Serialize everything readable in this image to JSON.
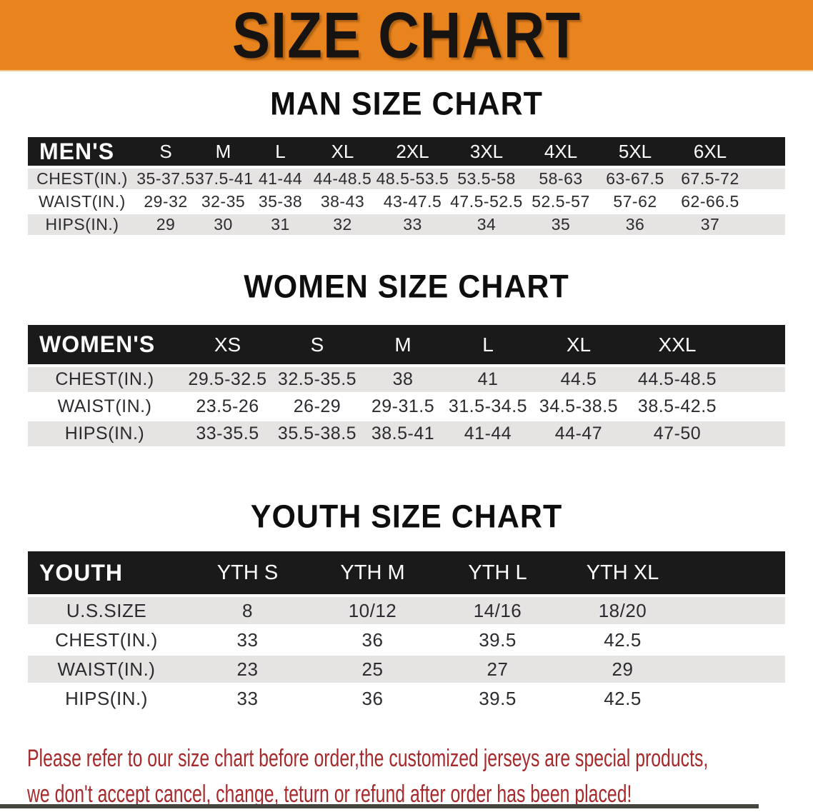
{
  "banner": {
    "title": "SIZE CHART"
  },
  "sections": [
    {
      "id": "men",
      "title": "MAN SIZE CHART",
      "table": {
        "header_label": "MEN'S",
        "columns": [
          "S",
          "M",
          "L",
          "XL",
          "2XL",
          "3XL",
          "4XL",
          "5XL",
          "6XL"
        ],
        "rows": [
          {
            "label": "CHEST(IN.)",
            "values": [
              "35-37.5",
              "37.5-41",
              "41-44",
              "44-48.5",
              "48.5-53.5",
              "53.5-58",
              "58-63",
              "63-67.5",
              "67.5-72"
            ]
          },
          {
            "label": "WAIST(IN.)",
            "values": [
              "29-32",
              "32-35",
              "35-38",
              "38-43",
              "43-47.5",
              "47.5-52.5",
              "52.5-57",
              "57-62",
              "62-66.5"
            ]
          },
          {
            "label": "HIPS(IN.)",
            "values": [
              "29",
              "30",
              "31",
              "32",
              "33",
              "34",
              "35",
              "36",
              "37"
            ]
          }
        ]
      }
    },
    {
      "id": "women",
      "title": "WOMEN SIZE CHART",
      "table": {
        "header_label": "WOMEN'S",
        "columns": [
          "XS",
          "S",
          "M",
          "L",
          "XL",
          "XXL"
        ],
        "rows": [
          {
            "label": "CHEST(IN.)",
            "values": [
              "29.5-32.5",
              "32.5-35.5",
              "38",
              "41",
              "44.5",
              "44.5-48.5"
            ]
          },
          {
            "label": "WAIST(IN.)",
            "values": [
              "23.5-26",
              "26-29",
              "29-31.5",
              "31.5-34.5",
              "34.5-38.5",
              "38.5-42.5"
            ]
          },
          {
            "label": "HIPS(IN.)",
            "values": [
              "33-35.5",
              "35.5-38.5",
              "38.5-41",
              "41-44",
              "44-47",
              "47-50"
            ]
          }
        ]
      }
    },
    {
      "id": "youth",
      "title": "YOUTH SIZE CHART",
      "table": {
        "header_label": "YOUTH",
        "columns": [
          "YTH S",
          "YTH M",
          "YTH L",
          "YTH XL"
        ],
        "rows": [
          {
            "label": "U.S.SIZE",
            "values": [
              "8",
              "10/12",
              "14/16",
              "18/20"
            ]
          },
          {
            "label": "CHEST(IN.)",
            "values": [
              "33",
              "36",
              "39.5",
              "42.5"
            ]
          },
          {
            "label": "WAIST(IN.)",
            "values": [
              "23",
              "25",
              "27",
              "29"
            ]
          },
          {
            "label": "HIPS(IN.)",
            "values": [
              "33",
              "36",
              "39.5",
              "42.5"
            ]
          }
        ]
      }
    }
  ],
  "disclaimer": {
    "line1": "Please refer to our size chart before order,the customized jerseys are special products,",
    "line2": "we don't accept cancel, change, teturn or refund after order has been placed!"
  },
  "colors": {
    "banner_orange": "#e8831e",
    "header_black": "#1a1a1a",
    "row_gray": "#e6e4e2",
    "body_text": "#2b2b30",
    "disclaimer_red": "#a8292c",
    "bottom_strip": "#45453e"
  }
}
